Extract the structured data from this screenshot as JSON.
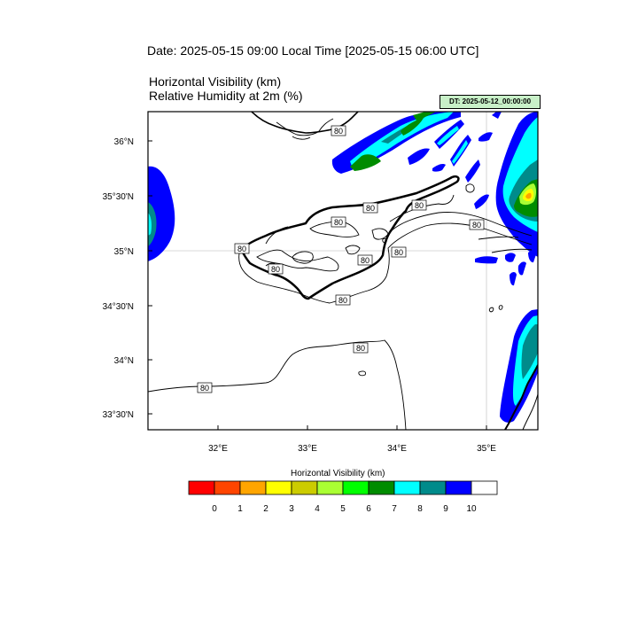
{
  "header": {
    "date_line": "Date: 2025-05-15  09:00 Local Time [2025-05-15  06:00 UTC]",
    "subtitle_1": "Horizontal Visibility   (km)",
    "subtitle_2": "Relative Humidity at 2m   (%)",
    "dt_badge": "DT: 2025-05-12_00:00:00"
  },
  "map": {
    "region": "Cyprus",
    "lat_labels": [
      "36°N",
      "35°30'N",
      "35°N",
      "34°30'N",
      "34°N",
      "33°30'N"
    ],
    "lon_labels": [
      "32°E",
      "33°E",
      "34°E",
      "35°E"
    ],
    "contour_labels": [
      "80",
      "80",
      "80",
      "80",
      "80",
      "80",
      "80",
      "80",
      "80",
      "80",
      "80",
      "80"
    ]
  },
  "legend": {
    "title": "Horizontal Visibility  (km)",
    "labels": [
      "0",
      "1",
      "2",
      "3",
      "4",
      "5",
      "6",
      "7",
      "8",
      "9",
      "10"
    ],
    "colors": [
      "#ff0000",
      "#ff4500",
      "#ffa500",
      "#ffff00",
      "#cccc00",
      "#aaff33",
      "#00ff00",
      "#008c00",
      "#00ffff",
      "#008b8b",
      "#0000ff",
      "#ffffff"
    ]
  }
}
